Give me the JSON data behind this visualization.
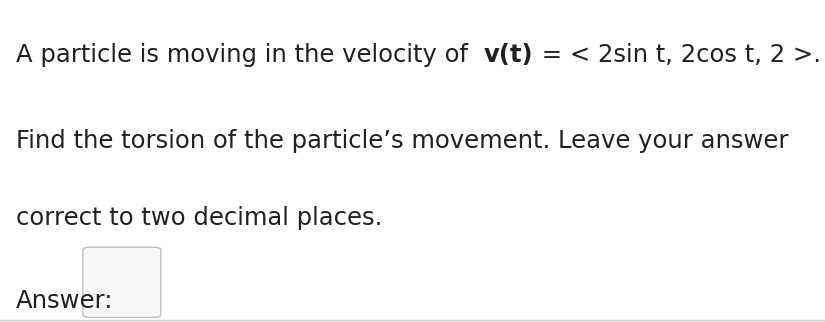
{
  "line1_normal": "A particle is moving in the velocity of ",
  "line1_bold": "v(t)",
  "line1_end": " = < 2sin t, 2cos t, 2 >.",
  "line2": "Find the torsion of the particle’s movement. Leave your answer",
  "line3": "correct to two decimal places.",
  "answer_label": "Answer:",
  "bg_color": "#ffffff",
  "text_color": "#212121",
  "font_size_main": 17.5,
  "font_size_answer": 17.5,
  "bottom_line_color": "#cccccc"
}
